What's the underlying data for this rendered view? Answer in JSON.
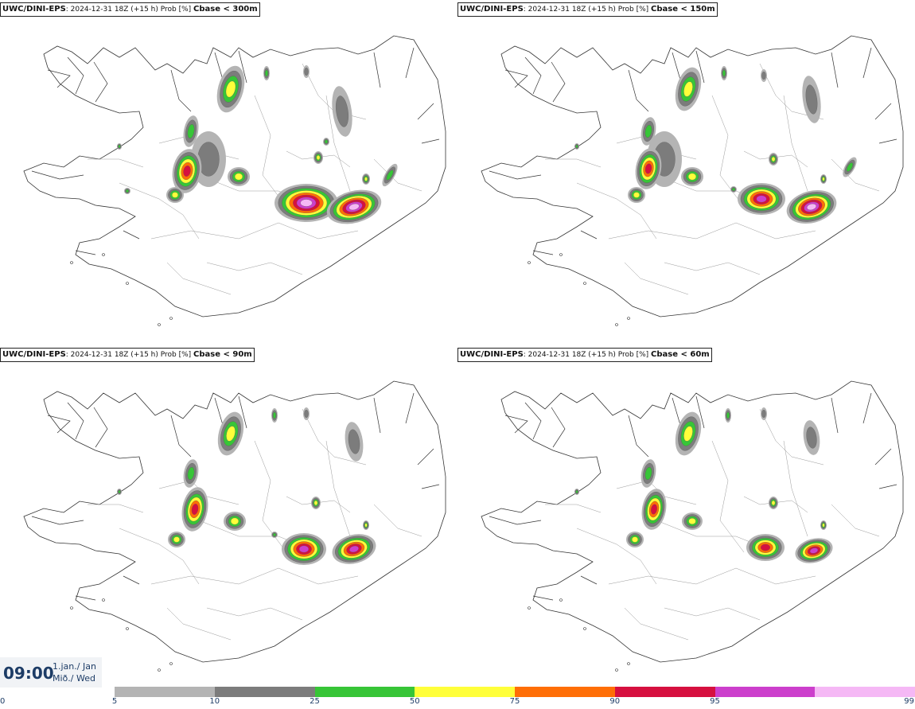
{
  "panels": [
    {
      "model": "UWC/DINI-EPS",
      "info": ": 2024-12-31 18Z (+15 h) Prob [%]",
      "cbase": "Cbase < 300m"
    },
    {
      "model": "UWC/DINI-EPS",
      "info": ": 2024-12-31 18Z (+15 h) Prob [%]",
      "cbase": "Cbase < 150m"
    },
    {
      "model": "UWC/DINI-EPS",
      "info": ": 2024-12-31 18Z (+15 h) Prob [%]",
      "cbase": "Cbase < 90m"
    },
    {
      "model": "UWC/DINI-EPS",
      "info": ": 2024-12-31 18Z (+15 h) Prob [%]",
      "cbase": "Cbase < 60m"
    }
  ],
  "time": {
    "clock": "09:00",
    "date_line1": "1.jan./ Jan",
    "date_line2": "Mið./ Wed"
  },
  "legend": {
    "ticks": [
      "0",
      "5",
      "10",
      "25",
      "50",
      "75",
      "90",
      "95",
      "99"
    ],
    "colors": [
      "#b4b4b4",
      "#7c7c7c",
      "#37c537",
      "#ffff3a",
      "#ff6e06",
      "#d6103f",
      "#cc3fcc",
      "#f5b8f5"
    ]
  }
}
